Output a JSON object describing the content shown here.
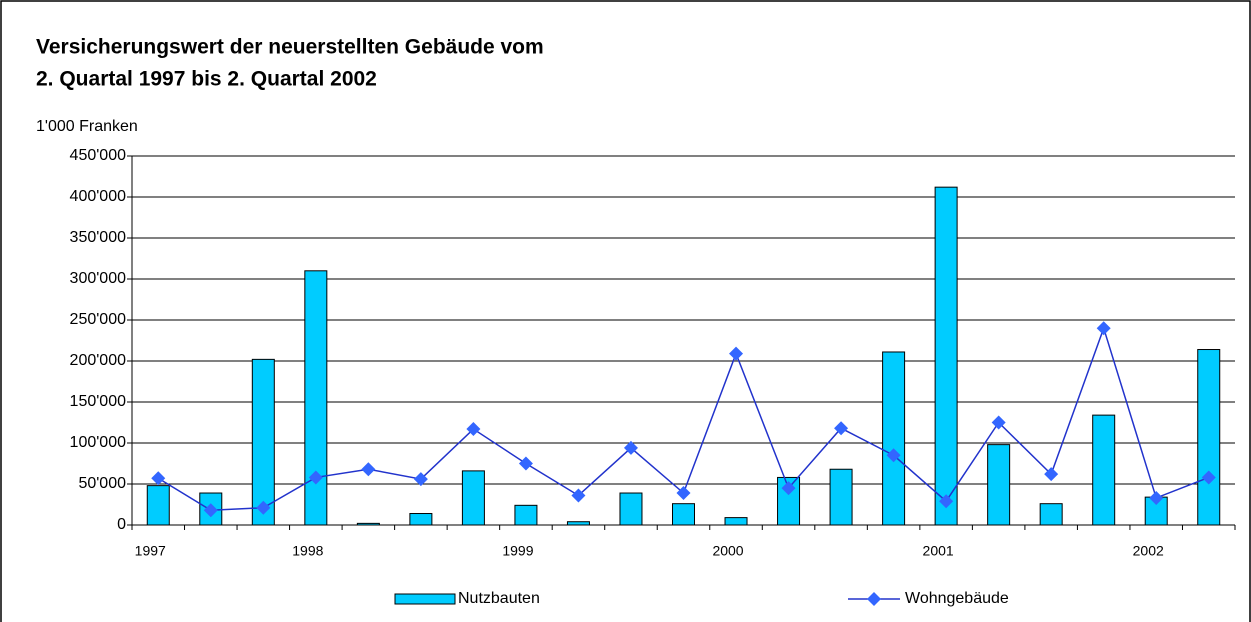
{
  "chart_data": {
    "type": "bar-line",
    "title": [
      "Versicherungswert der neuerstellten Gebäude vom",
      "2. Quartal 1997 bis 2. Quartal 2002"
    ],
    "y_axis_label": "1'000 Franken",
    "categories": [
      "1997",
      null,
      null,
      "1998",
      null,
      null,
      null,
      "1999",
      null,
      null,
      null,
      "2000",
      null,
      null,
      null,
      "2001",
      null,
      null,
      null,
      "2002",
      null
    ],
    "series": [
      {
        "name": "Nutzbauten",
        "type": "bar",
        "color": "#00ccff",
        "values": [
          48000,
          39000,
          202000,
          310000,
          2000,
          14000,
          66000,
          24000,
          4000,
          39000,
          26000,
          9000,
          58000,
          68000,
          211000,
          412000,
          98000,
          26000,
          134000,
          34000,
          214000
        ]
      },
      {
        "name": "Wohngebäude",
        "type": "line",
        "color": "#2233cc",
        "marker_color": "#3366ff",
        "values": [
          57000,
          18000,
          21000,
          58000,
          68000,
          56000,
          117000,
          75000,
          36000,
          94000,
          39000,
          209000,
          45000,
          118000,
          85000,
          29000,
          125000,
          62000,
          240000,
          33000,
          58000
        ]
      }
    ],
    "ylim": [
      0,
      450000
    ],
    "yticks": [
      0,
      {
        "value": 50000,
        "label": "50'000"
      },
      {
        "value": 100000,
        "label": "100'000"
      },
      {
        "value": 150000,
        "label": "150'000"
      },
      {
        "value": 200000,
        "label": "200'000"
      },
      {
        "value": 250000,
        "label": "250'000"
      },
      {
        "value": 300000,
        "label": "300'000"
      },
      {
        "value": 350000,
        "label": "350'000"
      },
      {
        "value": 400000,
        "label": "400'000"
      },
      {
        "value": 450000,
        "label": "450'000"
      }
    ],
    "grid": true,
    "legend": "bottom"
  }
}
